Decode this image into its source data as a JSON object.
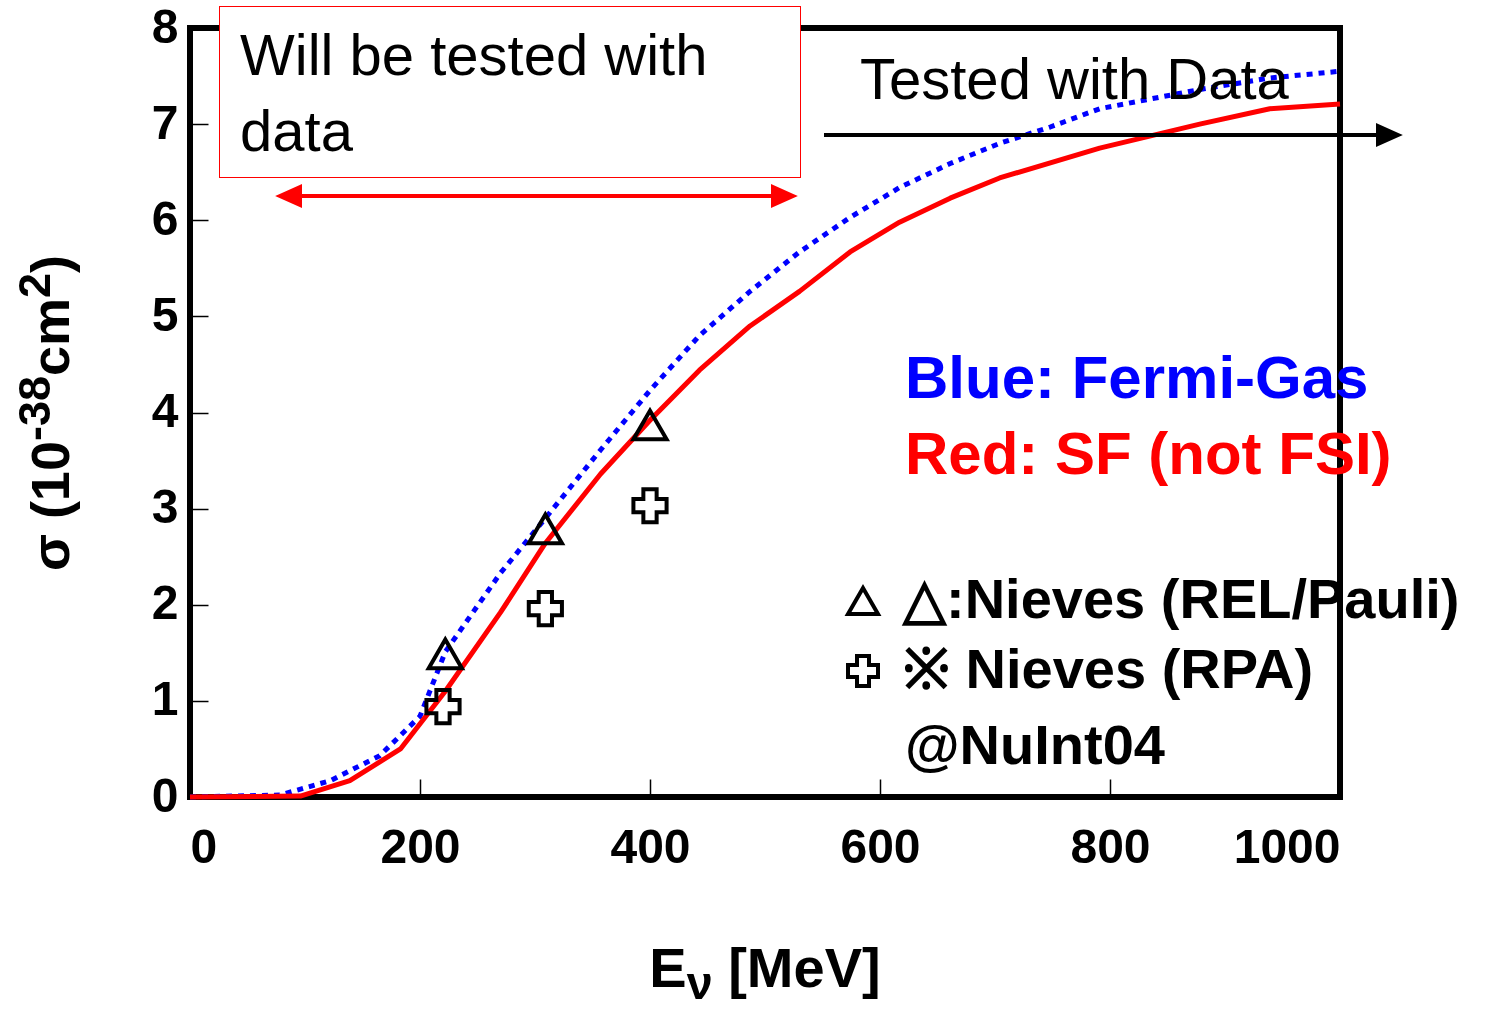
{
  "chart_data": {
    "type": "line",
    "xlabel": "E$_{ν}$ [MeV]",
    "ylabel": "σ (10$^{-38}$cm$^{2}$)",
    "xlim": [
      0,
      1000
    ],
    "xticks": [
      0,
      200,
      400,
      600,
      800,
      1000
    ],
    "ylim": [
      0,
      8
    ],
    "yticks": [
      0,
      1,
      2,
      3,
      4,
      5,
      6,
      7,
      8
    ],
    "legend": "right",
    "grid": false,
    "annotations": [
      "Will be tested with data",
      "Tested with Data",
      "@NuInt04"
    ],
    "series": [
      {
        "name": "Blue: Fermi-Gas",
        "color": "#0000ff",
        "line_style": "dotted",
        "x": [
          0,
          78,
          122,
          165,
          200,
          222,
          270,
          309,
          357,
          400,
          443,
          487,
          530,
          574,
          617,
          661,
          704,
          748,
          791,
          878,
          939,
          1000
        ],
        "values": [
          0,
          0.02,
          0.17,
          0.43,
          0.84,
          1.51,
          2.33,
          2.9,
          3.61,
          4.23,
          4.8,
          5.26,
          5.67,
          6.03,
          6.34,
          6.59,
          6.8,
          6.97,
          7.16,
          7.36,
          7.48,
          7.55
        ]
      },
      {
        "name": "Red: SF (not FSI)",
        "color": "#ff0000",
        "line_style": "solid",
        "x": [
          0,
          96,
          139,
          183,
          222,
          270,
          309,
          357,
          400,
          443,
          487,
          530,
          574,
          617,
          661,
          704,
          791,
          878,
          939,
          1000
        ],
        "values": [
          0,
          0.01,
          0.17,
          0.5,
          1.1,
          1.92,
          2.64,
          3.36,
          3.92,
          4.44,
          4.9,
          5.26,
          5.67,
          5.98,
          6.23,
          6.44,
          6.75,
          7.0,
          7.16,
          7.21
        ]
      },
      {
        "name": "△:Nieves (REL/Pauli)",
        "type": "scatter",
        "marker": "triangle",
        "color": "#000000",
        "x": [
          222,
          309,
          400
        ],
        "values": [
          1.49,
          2.79,
          3.87
        ]
      },
      {
        "name": "※ Nieves (RPA)",
        "type": "scatter",
        "marker": "cross",
        "color": "#000000",
        "x": [
          220,
          309,
          400
        ],
        "values": [
          0.94,
          1.96,
          3.03
        ]
      }
    ]
  }
}
